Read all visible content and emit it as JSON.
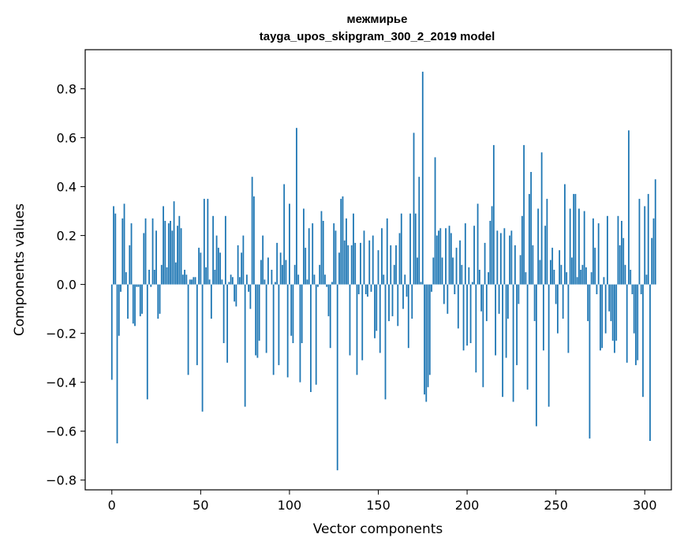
{
  "chart_data": {
    "type": "bar",
    "title": "межмирье",
    "subtitle": "tayga_upos_skipgram_300_2_2019 model",
    "xlabel": "Vector components",
    "ylabel": "Components values",
    "xlim": [
      -15,
      315
    ],
    "ylim": [
      -0.84,
      0.96
    ],
    "xticks": [
      0,
      50,
      100,
      150,
      200,
      250,
      300
    ],
    "xtick_labels": [
      "0",
      "50",
      "100",
      "150",
      "200",
      "250",
      "300"
    ],
    "yticks": [
      -0.8,
      -0.6,
      -0.4,
      -0.2,
      0.0,
      0.2,
      0.4,
      0.6,
      0.8
    ],
    "ytick_labels": [
      "−0.8",
      "−0.6",
      "−0.4",
      "−0.2",
      "0.0",
      "0.2",
      "0.4",
      "0.6",
      "0.8"
    ],
    "grid": false,
    "color": "#1f77b4",
    "values": [
      -0.39,
      0.32,
      0.29,
      -0.65,
      -0.21,
      -0.03,
      0.27,
      0.33,
      0.05,
      -0.14,
      0.16,
      0.25,
      -0.16,
      -0.17,
      -0.01,
      -0.01,
      -0.13,
      -0.12,
      0.21,
      0.27,
      -0.47,
      0.06,
      -0.01,
      0.27,
      0.06,
      0.22,
      -0.14,
      -0.12,
      0.08,
      0.32,
      0.26,
      0.07,
      0.25,
      0.26,
      0.22,
      0.34,
      0.09,
      0.24,
      0.28,
      0.23,
      0.04,
      0.06,
      0.04,
      -0.37,
      0.02,
      0.02,
      0.03,
      0.03,
      -0.33,
      0.15,
      0.13,
      -0.52,
      0.35,
      0.07,
      0.35,
      0.02,
      -0.14,
      0.28,
      0.06,
      0.2,
      0.15,
      0.13,
      0.02,
      -0.24,
      0.28,
      -0.32,
      0.01,
      0.04,
      0.03,
      -0.07,
      -0.09,
      0.16,
      0.03,
      0.13,
      0.2,
      -0.5,
      0.04,
      -0.03,
      -0.1,
      0.44,
      0.36,
      -0.29,
      -0.3,
      -0.23,
      0.1,
      0.2,
      0.02,
      -0.28,
      0.11,
      0.0,
      0.06,
      -0.37,
      0.01,
      0.17,
      -0.33,
      0.13,
      0.08,
      0.41,
      0.1,
      -0.38,
      0.33,
      -0.21,
      -0.24,
      0.08,
      0.64,
      0.04,
      -0.4,
      -0.24,
      0.31,
      0.15,
      0.02,
      0.23,
      -0.44,
      0.25,
      0.04,
      -0.41,
      -0.01,
      0.08,
      0.3,
      0.26,
      0.04,
      -0.01,
      -0.13,
      -0.26,
      0.01,
      0.25,
      0.22,
      -0.76,
      0.13,
      0.35,
      0.36,
      0.18,
      0.27,
      0.16,
      -0.29,
      0.16,
      0.29,
      0.17,
      -0.37,
      -0.04,
      0.17,
      -0.31,
      0.22,
      -0.04,
      -0.05,
      0.18,
      -0.03,
      0.2,
      -0.22,
      -0.19,
      0.14,
      -0.28,
      0.23,
      0.04,
      -0.47,
      0.27,
      -0.15,
      0.16,
      -0.13,
      0.08,
      0.16,
      -0.17,
      0.21,
      0.29,
      -0.1,
      0.04,
      -0.05,
      -0.26,
      0.29,
      -0.14,
      0.62,
      0.29,
      0.11,
      0.44,
      0.01,
      0.87,
      -0.45,
      -0.48,
      -0.42,
      -0.37,
      -0.03,
      0.11,
      0.52,
      0.2,
      0.22,
      0.23,
      0.11,
      -0.08,
      0.23,
      -0.12,
      0.24,
      0.21,
      0.11,
      -0.04,
      0.15,
      -0.18,
      0.18,
      0.08,
      -0.27,
      0.25,
      -0.25,
      0.07,
      -0.24,
      0.01,
      0.24,
      -0.36,
      0.33,
      0.06,
      -0.11,
      -0.42,
      0.17,
      -0.15,
      0.05,
      0.26,
      0.32,
      0.57,
      -0.29,
      0.22,
      -0.12,
      0.21,
      -0.46,
      0.23,
      -0.3,
      -0.14,
      0.2,
      0.22,
      -0.48,
      0.16,
      -0.33,
      -0.08,
      0.12,
      0.28,
      0.57,
      0.05,
      -0.43,
      0.37,
      0.46,
      0.16,
      -0.15,
      -0.58,
      0.31,
      0.1,
      0.54,
      -0.27,
      0.24,
      0.35,
      -0.5,
      0.1,
      0.15,
      0.06,
      -0.08,
      -0.2,
      0.14,
      0.08,
      -0.14,
      0.41,
      0.05,
      -0.28,
      0.31,
      0.11,
      0.37,
      0.37,
      0.03,
      0.31,
      0.06,
      0.08,
      0.3,
      0.07,
      -0.15,
      -0.63,
      0.05,
      0.27,
      0.15,
      -0.04,
      0.25,
      -0.27,
      -0.26,
      0.03,
      -0.2,
      0.28,
      -0.11,
      -0.15,
      -0.23,
      -0.28,
      -0.23,
      0.28,
      0.16,
      0.26,
      0.19,
      0.08,
      -0.32,
      0.63,
      0.06,
      -0.04,
      -0.2,
      -0.33,
      -0.31,
      0.35,
      -0.04,
      -0.46,
      0.32,
      0.04,
      0.37,
      -0.64,
      0.19,
      0.27,
      0.43
    ]
  }
}
